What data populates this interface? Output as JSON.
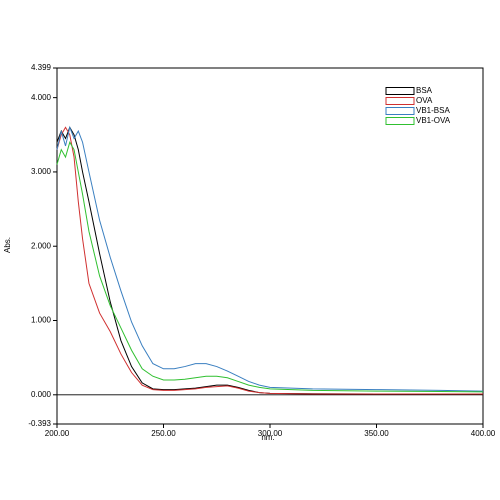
{
  "chart_data": {
    "type": "line",
    "xlabel": "nm.",
    "ylabel": "Abs.",
    "x": [
      200,
      202,
      204,
      206,
      208,
      210,
      212,
      215,
      220,
      225,
      230,
      235,
      240,
      245,
      250,
      255,
      260,
      265,
      270,
      275,
      280,
      285,
      290,
      295,
      300,
      320,
      350,
      380,
      400
    ],
    "series": [
      {
        "name": "BSA",
        "color": "#000000",
        "values": [
          3.4,
          3.55,
          3.45,
          3.6,
          3.5,
          3.3,
          3.0,
          2.6,
          1.9,
          1.25,
          0.73,
          0.38,
          0.16,
          0.08,
          0.07,
          0.07,
          0.08,
          0.09,
          0.11,
          0.13,
          0.13,
          0.1,
          0.06,
          0.03,
          0.02,
          0.015,
          0.01,
          0.01,
          0.01
        ]
      },
      {
        "name": "OVA",
        "color": "#d03030",
        "values": [
          3.3,
          3.5,
          3.6,
          3.5,
          3.2,
          2.6,
          2.1,
          1.5,
          1.1,
          0.85,
          0.55,
          0.3,
          0.13,
          0.07,
          0.06,
          0.06,
          0.07,
          0.08,
          0.1,
          0.11,
          0.12,
          0.09,
          0.05,
          0.03,
          0.02,
          0.01,
          0.01,
          0.01,
          0.01
        ]
      },
      {
        "name": "VB1-BSA",
        "color": "#3a7fc0",
        "values": [
          3.3,
          3.55,
          3.35,
          3.6,
          3.45,
          3.55,
          3.4,
          3.0,
          2.35,
          1.85,
          1.4,
          0.98,
          0.66,
          0.42,
          0.35,
          0.35,
          0.38,
          0.42,
          0.42,
          0.38,
          0.32,
          0.25,
          0.18,
          0.13,
          0.1,
          0.08,
          0.07,
          0.06,
          0.05
        ]
      },
      {
        "name": "VB1-OVA",
        "color": "#30c030",
        "values": [
          3.1,
          3.3,
          3.2,
          3.4,
          3.3,
          3.0,
          2.7,
          2.2,
          1.6,
          1.2,
          0.9,
          0.6,
          0.35,
          0.25,
          0.2,
          0.2,
          0.21,
          0.23,
          0.25,
          0.25,
          0.23,
          0.18,
          0.13,
          0.1,
          0.08,
          0.06,
          0.05,
          0.045,
          0.04
        ]
      }
    ],
    "xlim": [
      200,
      400
    ],
    "xticks": [
      {
        "value": 200,
        "label": "200.00"
      },
      {
        "value": 250,
        "label": "250.00"
      },
      {
        "value": 300,
        "label": "300.00"
      },
      {
        "value": 350,
        "label": "350.00"
      },
      {
        "value": 400,
        "label": "400.00"
      }
    ],
    "ylim": [
      -0.393,
      4.399
    ],
    "yticks": [
      -0.393,
      {
        "value": 0,
        "label": "0.000"
      },
      {
        "value": 1,
        "label": "1.000"
      },
      {
        "value": 2,
        "label": "2.000"
      },
      {
        "value": 3,
        "label": "3.000"
      },
      {
        "value": 4,
        "label": "4.000"
      },
      4.399
    ],
    "legend": "upper right"
  }
}
